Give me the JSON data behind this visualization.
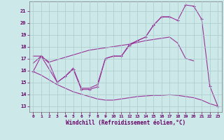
{
  "xlabel": "Windchill (Refroidissement éolien,°C)",
  "bg_color": "#cce8e8",
  "line_color": "#993399",
  "xlim": [
    -0.5,
    23.5
  ],
  "ylim": [
    12.5,
    21.8
  ],
  "yticks": [
    13,
    14,
    15,
    16,
    17,
    18,
    19,
    20,
    21
  ],
  "xticks": [
    0,
    1,
    2,
    3,
    4,
    5,
    6,
    7,
    8,
    9,
    10,
    11,
    12,
    13,
    14,
    15,
    16,
    17,
    18,
    19,
    20,
    21,
    22,
    23
  ],
  "line1_x": [
    0,
    1,
    2,
    3,
    4,
    5,
    6,
    7,
    8,
    9,
    10,
    11,
    12,
    13,
    14,
    15,
    16,
    17,
    18,
    19,
    20
  ],
  "line1_y": [
    17.2,
    17.2,
    16.7,
    16.9,
    17.1,
    17.3,
    17.5,
    17.7,
    17.8,
    17.9,
    18.0,
    18.1,
    18.2,
    18.35,
    18.5,
    18.6,
    18.7,
    18.8,
    18.3,
    17.0,
    16.8
  ],
  "line2_x": [
    0,
    1,
    3,
    4,
    5,
    6,
    7,
    8,
    9,
    10,
    11,
    12,
    13,
    14,
    15,
    16,
    17,
    18,
    19,
    20,
    21,
    22,
    23
  ],
  "line2_y": [
    15.9,
    17.2,
    15.0,
    15.5,
    16.1,
    14.4,
    14.4,
    14.6,
    17.0,
    17.2,
    17.2,
    18.1,
    18.5,
    18.8,
    19.8,
    20.5,
    20.5,
    20.2,
    21.5,
    21.4,
    20.3,
    14.7,
    13.0
  ],
  "line3_x": [
    0,
    1,
    2,
    3,
    4,
    5,
    6,
    7,
    8,
    9,
    10,
    11,
    12,
    13,
    14,
    15,
    16,
    17
  ],
  "line3_y": [
    16.6,
    17.2,
    16.6,
    15.0,
    15.5,
    16.2,
    14.5,
    14.5,
    14.8,
    17.0,
    17.2,
    17.2,
    18.2,
    18.5,
    18.8,
    19.8,
    20.5,
    20.5
  ],
  "line4_x": [
    0,
    1,
    2,
    3,
    4,
    5,
    6,
    7,
    8,
    9,
    10,
    11,
    12,
    13,
    14,
    15,
    16,
    17,
    18,
    19,
    20,
    21,
    22,
    23
  ],
  "line4_y": [
    15.9,
    15.6,
    15.2,
    14.8,
    14.5,
    14.2,
    14.0,
    13.8,
    13.6,
    13.5,
    13.5,
    13.6,
    13.7,
    13.8,
    13.85,
    13.9,
    13.9,
    13.95,
    13.9,
    13.8,
    13.7,
    13.5,
    13.2,
    13.0
  ]
}
